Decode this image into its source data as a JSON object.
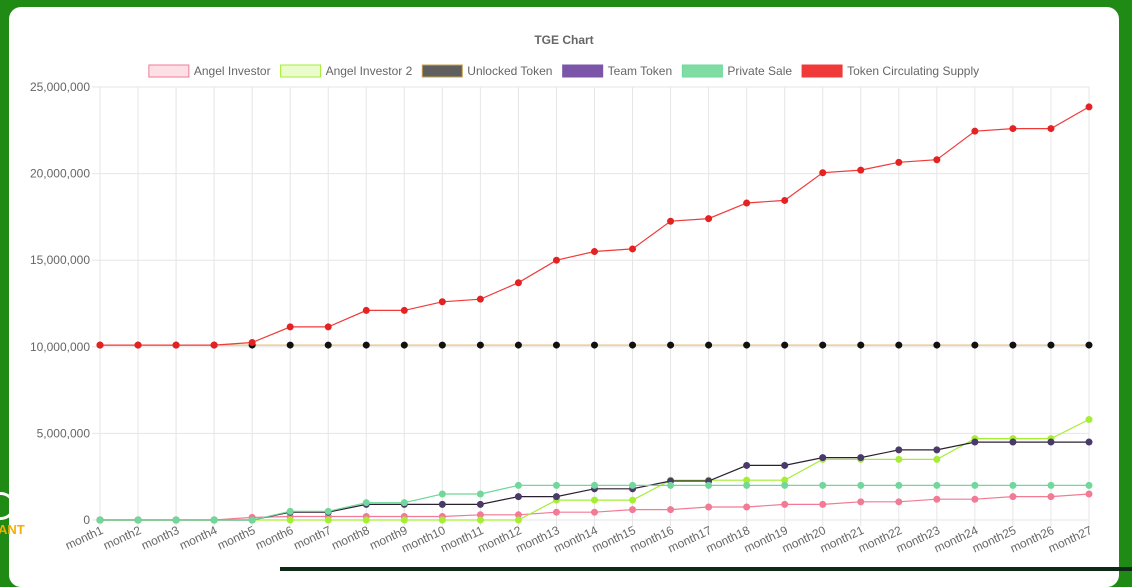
{
  "chart_data": {
    "type": "line",
    "title": "TGE Chart",
    "categories": [
      "month1",
      "month2",
      "month3",
      "month4",
      "month5",
      "month6",
      "month7",
      "month8",
      "month9",
      "month10",
      "month11",
      "month12",
      "month13",
      "month14",
      "month15",
      "month16",
      "month17",
      "month18",
      "month19",
      "month20",
      "month21",
      "month22",
      "month23",
      "month24",
      "month25",
      "month26",
      "month27"
    ],
    "ylim": [
      0,
      25000000
    ],
    "yticks": [
      0,
      5000000,
      10000000,
      15000000,
      20000000,
      25000000
    ],
    "ytick_labels": [
      "0",
      "5,000,000",
      "10,000,000",
      "15,000,000",
      "20,000,000",
      "25,000,000"
    ],
    "grid": true,
    "legend_position": "top",
    "series": [
      {
        "name": "Angel Investor",
        "line_color": "#f27a95",
        "fill_color": "#fde0e6",
        "legend_border": "#f27a95",
        "values": [
          0,
          0,
          0,
          0,
          150000,
          200000,
          200000,
          200000,
          200000,
          200000,
          300000,
          300000,
          450000,
          450000,
          600000,
          600000,
          750000,
          750000,
          900000,
          900000,
          1050000,
          1050000,
          1200000,
          1200000,
          1350000,
          1350000,
          1500000
        ]
      },
      {
        "name": "Angel Investor 2",
        "line_color": "#a6ee35",
        "fill_color": "#eafccc",
        "legend_border": "#a6ee35",
        "values": [
          0,
          0,
          0,
          0,
          0,
          0,
          0,
          0,
          0,
          0,
          0,
          0,
          1150000,
          1150000,
          1150000,
          2300000,
          2300000,
          2300000,
          2300000,
          3500000,
          3500000,
          3500000,
          3500000,
          4700000,
          4700000,
          4700000,
          5800000
        ]
      },
      {
        "name": "Unlocked Token",
        "line_color": "#e8c27a",
        "fill_color": "#5f5f5f",
        "legend_border": "#c9a04c",
        "point_color": "#111111",
        "values": [
          10100000,
          10100000,
          10100000,
          10100000,
          10100000,
          10100000,
          10100000,
          10100000,
          10100000,
          10100000,
          10100000,
          10100000,
          10100000,
          10100000,
          10100000,
          10100000,
          10100000,
          10100000,
          10100000,
          10100000,
          10100000,
          10100000,
          10100000,
          10100000,
          10100000,
          10100000,
          10100000
        ]
      },
      {
        "name": "Team Token",
        "line_color": "#2b2030",
        "fill_color": "#7b55a8",
        "legend_border": "#7b55a8",
        "point_color": "#4a3a6a",
        "values": [
          0,
          0,
          0,
          0,
          0,
          450000,
          450000,
          900000,
          900000,
          900000,
          900000,
          1350000,
          1350000,
          1800000,
          1800000,
          2250000,
          2250000,
          3150000,
          3150000,
          3600000,
          3600000,
          4050000,
          4050000,
          4500000,
          4500000,
          4500000,
          4500000
        ]
      },
      {
        "name": "Private Sale",
        "line_color": "#6fd89a",
        "fill_color": "#7fdca2",
        "legend_border": "#6fd89a",
        "values": [
          0,
          0,
          0,
          0,
          0,
          500000,
          500000,
          1000000,
          1000000,
          1500000,
          1500000,
          2000000,
          2000000,
          2000000,
          2000000,
          2000000,
          2000000,
          2000000,
          2000000,
          2000000,
          2000000,
          2000000,
          2000000,
          2000000,
          2000000,
          2000000,
          2000000
        ]
      },
      {
        "name": "Token Circulating Supply",
        "line_color": "#f03a3a",
        "fill_color": "#f03a3a",
        "legend_border": "#f03a3a",
        "point_color": "#e52222",
        "values": [
          10100000,
          10100000,
          10100000,
          10100000,
          10250000,
          11150000,
          11150000,
          12100000,
          12100000,
          12600000,
          12750000,
          13700000,
          15000000,
          15500000,
          15650000,
          17250000,
          17400000,
          18300000,
          18450000,
          20050000,
          20200000,
          20650000,
          20800000,
          22450000,
          22600000,
          22600000,
          23850000
        ]
      }
    ]
  },
  "side_brand": {
    "label": "ANT"
  }
}
